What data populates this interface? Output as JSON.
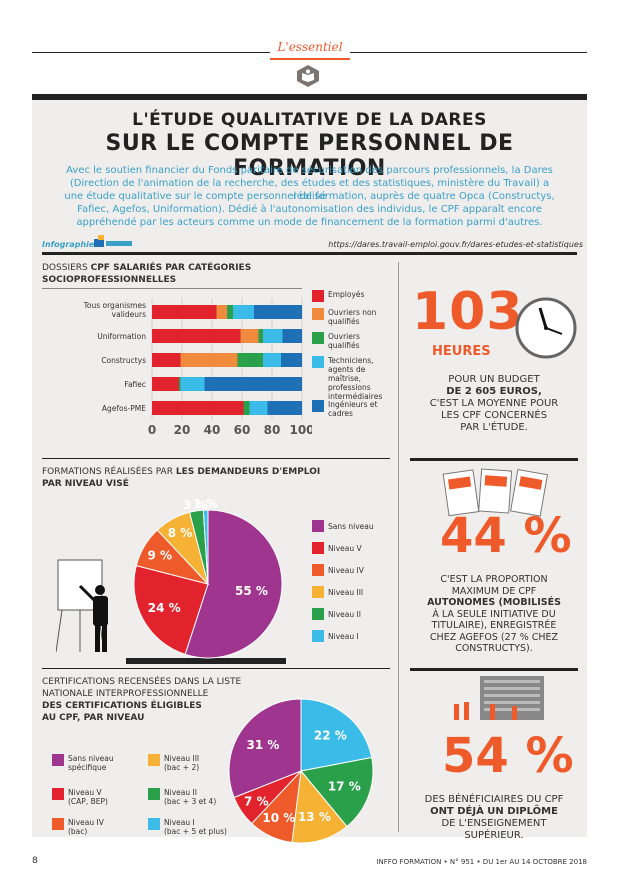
{
  "header": {
    "section_label": "L'essentiel"
  },
  "title": {
    "line1": "L'ÉTUDE QUALITATIVE DE LA DARES",
    "line2": "SUR LE COMPTE PERSONNEL DE FORMATION"
  },
  "intro": {
    "l1": "Avec le soutien financier du Fonds paritaire de sécurisation des parcours professionnels, la Dares",
    "l2": "(Direction de l'animation de la recherche, des études et des statistiques, ministère du Travail) a réalisé",
    "l3": "une étude qualitative sur le compte personnel de formation, auprès de quatre Opca (Constructys,",
    "l4": "Fafiec, Agefos, Uniformation). Dédié à l'autonomisation des individus, le CPF apparaît encore",
    "l5": "appréhendé par les acteurs comme un mode de financement de la formation parmi d'autres."
  },
  "credit": {
    "infographie": "Infographie",
    "url": "https://dares.travail-emploi.gouv.fr/dares-etudes-et-statistiques"
  },
  "chart1": {
    "title_plain": "DOSSIERS ",
    "title_bold": "CPF SALARIÉS PAR CATÉGORIES SOCIOPROFESSIONNELLES",
    "rows": [
      "Tous organismes valideurs",
      "Uniformation",
      "Constructys",
      "Fafiec",
      "Agefos-PME"
    ],
    "ticks": [
      "0",
      "20",
      "40",
      "60",
      "80",
      "100"
    ],
    "legend": [
      "Employés",
      "Ouvriers non qualifiés",
      "Ouvriers qualifiés",
      "Techniciens, agents de maîtrise, professions intermédiaires",
      "Ingénieurs et cadres"
    ]
  },
  "chart_data": [
    {
      "type": "bar",
      "title": "DOSSIERS CPF SALARIÉS PAR CATÉGORIES SOCIOPROFESSIONNELLES",
      "orientation": "horizontal-stacked",
      "categories": [
        "Tous organismes valideurs",
        "Uniformation",
        "Constructys",
        "Fafiec",
        "Agefos-PME"
      ],
      "xlim": [
        0,
        100
      ],
      "series": [
        {
          "name": "Employés",
          "color": "#e2232d",
          "values": [
            43,
            59,
            19,
            18,
            61
          ]
        },
        {
          "name": "Ouvriers non qualifiés",
          "color": "#f08a3c",
          "values": [
            7,
            12,
            38,
            0,
            0
          ]
        },
        {
          "name": "Ouvriers qualifiés",
          "color": "#2aa04a",
          "values": [
            4,
            3,
            17,
            1,
            4
          ]
        },
        {
          "name": "Techniciens, agents de maîtrise, professions intermédiaires",
          "color": "#3bbce8",
          "values": [
            14,
            13,
            12,
            16,
            12
          ]
        },
        {
          "name": "Ingénieurs et cadres",
          "color": "#1f6fb5",
          "values": [
            32,
            13,
            14,
            65,
            23
          ]
        }
      ]
    },
    {
      "type": "pie",
      "title": "FORMATIONS RÉALISÉES PAR LES DEMANDEURS D'EMPLOI PAR NIVEAU VISÉ",
      "unit": "%",
      "slices": [
        {
          "name": "Sans niveau",
          "value": 55,
          "color": "#a0358f"
        },
        {
          "name": "Niveau V",
          "value": 24,
          "color": "#e2232d"
        },
        {
          "name": "Niveau IV",
          "value": 9,
          "color": "#ef5a2b"
        },
        {
          "name": "Niveau III",
          "value": 8,
          "color": "#f5b234"
        },
        {
          "name": "Niveau II",
          "value": 3,
          "color": "#2aa04a"
        },
        {
          "name": "Niveau I",
          "value": 1,
          "color": "#3bbce8"
        }
      ]
    },
    {
      "type": "pie",
      "title": "CERTIFICATIONS RECENSÉES DANS LA LISTE NATIONALE INTERPROFESSIONNELLE DES CERTIFICATIONS ÉLIGIBLES AU CPF, PAR NIVEAU",
      "unit": "%",
      "slices": [
        {
          "name": "Niveau I (bac + 5 et plus)",
          "value": 22,
          "color": "#3bbce8"
        },
        {
          "name": "Niveau II (bac + 3 et 4)",
          "value": 17,
          "color": "#2aa04a"
        },
        {
          "name": "Niveau III (bac + 2)",
          "value": 13,
          "color": "#f5b234"
        },
        {
          "name": "Niveau IV (bac)",
          "value": 10,
          "color": "#ef5a2b"
        },
        {
          "name": "Niveau V (CAP, BEP)",
          "value": 7,
          "color": "#e2232d"
        },
        {
          "name": "Sans niveau spécifique",
          "value": 31,
          "color": "#a0358f"
        }
      ]
    }
  ],
  "chart2": {
    "title_plain": "FORMATIONS RÉALISÉES PAR ",
    "title_bold1": "LES DEMANDEURS D'EMPLOI",
    "title_bold2": "PAR NIVEAU VISÉ",
    "labels": [
      "55 %",
      "24 %",
      "9 %",
      "8 %",
      "3 %",
      "1 %"
    ],
    "legend": [
      "Sans niveau",
      "Niveau V",
      "Niveau IV",
      "Niveau III",
      "Niveau II",
      "Niveau I"
    ]
  },
  "chart3": {
    "title_l1": "CERTIFICATIONS RECENSÉES DANS LA LISTE",
    "title_l2": "NATIONALE INTERPROFESSIONNELLE",
    "title_l3": "DES CERTIFICATIONS ÉLIGIBLES",
    "title_l4": "AU CPF, PAR NIVEAU",
    "labels": [
      "22 %",
      "17 %",
      "13 %",
      "10 %",
      "7 %",
      "31 %"
    ],
    "legend": [
      {
        "l1": "Sans niveau",
        "l2": "spécifique"
      },
      {
        "l1": "Niveau V",
        "l2": "(CAP, BEP)"
      },
      {
        "l1": "Niveau IV",
        "l2": "(bac)"
      },
      {
        "l1": "Niveau III",
        "l2": "(bac + 2)"
      },
      {
        "l1": "Niveau II",
        "l2": "(bac + 3 et 4)"
      },
      {
        "l1": "Niveau I",
        "l2": "(bac + 5 et plus)"
      }
    ]
  },
  "stat1": {
    "value": "103",
    "unit": "HEURES",
    "l1": "POUR UN BUDGET",
    "l2": "DE 2 605 EUROS,",
    "l3": "C'EST LA MOYENNE POUR",
    "l4": "LES CPF CONCERNÉS",
    "l5": "PAR L'ÉTUDE."
  },
  "stat2": {
    "value": "44 %",
    "l1": "C'EST LA PROPORTION",
    "l2": "MAXIMUM DE CPF",
    "l3": "AUTONOMES (MOBILISÉS",
    "l4": "À LA SEULE INITIATIVE DU",
    "l5": "TITULAIRE), ENREGISTRÉE",
    "l6": "CHEZ AGEFOS (27 % CHEZ",
    "l7": "CONSTRUCTYS)."
  },
  "stat3": {
    "value": "54 %",
    "l1": "DES BÉNÉFICIAIRES DU CPF",
    "l2": "ONT DÉJÀ UN DIPLÔME",
    "l3": "DE L'ENSEIGNEMENT",
    "l4": "SUPÉRIEUR."
  },
  "footer": {
    "page": "8",
    "publication": "INFFO FORMATION • N° 951 • DU 1er AU 14 OCTOBRE 2018"
  },
  "colors": {
    "red": "#e2232d",
    "orange": "#ef5a2b",
    "blue": "#3aa0c8",
    "purple": "#a0358f"
  }
}
